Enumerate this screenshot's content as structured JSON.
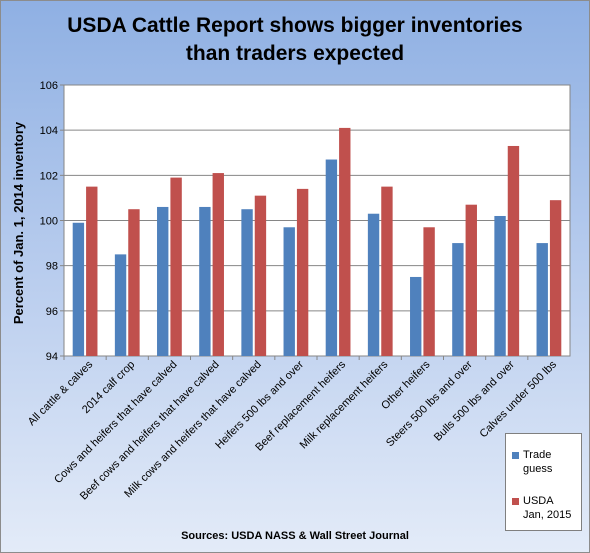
{
  "chart_data": {
    "type": "bar",
    "title_lines": [
      "USDA Cattle Report shows bigger inventories",
      "than traders expected"
    ],
    "xlabel": "",
    "ylabel": "Percent of Jan. 1, 2014 inventory",
    "ylim": [
      94,
      106
    ],
    "yticks": [
      94,
      96,
      98,
      100,
      102,
      104,
      106
    ],
    "grid": true,
    "legend_position": "bottom-right",
    "categories": [
      "All cattle & calves",
      "2014 calf crop",
      "Cows and heifers that have calved",
      "Beef cows and heifers that have calved",
      "Milk cows and heifers that have calved",
      "Heifers 500 lbs and over",
      "Beef replacement heifers",
      "Milk replacement heifers",
      "Other heifers",
      "Steers 500 lbs and over",
      "Bulls 500 lbs and over",
      "Calves under 500 lbs"
    ],
    "series": [
      {
        "name_lines": [
          "Trade",
          "guess"
        ],
        "color": "#4f81bd",
        "values": [
          99.9,
          98.5,
          100.6,
          100.6,
          100.5,
          99.7,
          102.7,
          100.3,
          97.5,
          99.0,
          100.2,
          99.0
        ]
      },
      {
        "name_lines": [
          "USDA",
          "Jan, 2015"
        ],
        "color": "#c0504d",
        "values": [
          101.5,
          100.5,
          101.9,
          102.1,
          101.1,
          101.4,
          104.1,
          101.5,
          99.7,
          100.7,
          103.3,
          100.9
        ]
      }
    ],
    "source": "Sources:  USDA NASS & Wall Street Journal"
  }
}
